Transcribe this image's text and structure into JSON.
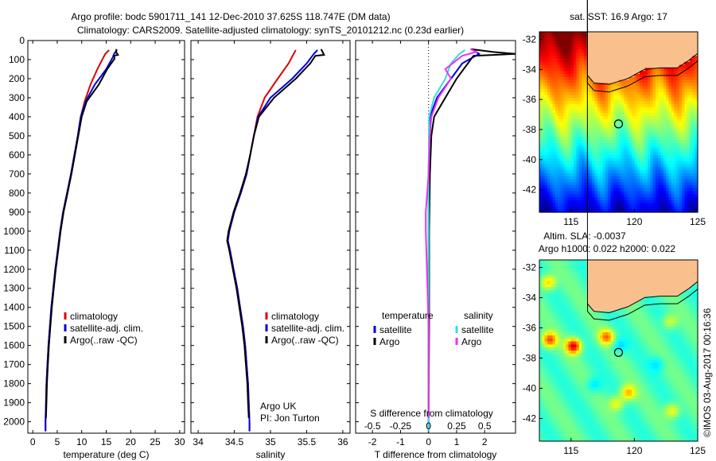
{
  "title_line1": "Argo profile: bodc 5901711_141 12-Dec-2010 37.625S 118.747E (DM data)",
  "title_line2": "Climatology: CARS2009. Satellite-adjusted climatology: synTS_20101212.nc (0.23d earlier)",
  "side_caption": "©IMOS 03-Aug-2017 00:16:36",
  "colors": {
    "climatology": "#e00000",
    "satellite": "#0000dd",
    "argo": "#000000",
    "salinity_satellite": "#33dddd",
    "salinity_argo": "#ee33ee",
    "land": "#f9c08e"
  },
  "chart_data": [
    {
      "type": "line",
      "id": "temperature",
      "xlabel": "temperature (deg C)",
      "ylabel": "",
      "xlim": [
        -1,
        31
      ],
      "ylim": [
        0,
        2060
      ],
      "y_reversed": true,
      "xticks": [
        0,
        5,
        10,
        15,
        20,
        25,
        30
      ],
      "yticks": [
        0,
        100,
        200,
        300,
        400,
        500,
        600,
        700,
        800,
        900,
        1000,
        1100,
        1200,
        1300,
        1400,
        1500,
        1600,
        1700,
        1800,
        1900,
        2000
      ],
      "legend": [
        "climatology",
        "satellite-adj. clim.",
        "Argo(..raw -QC)"
      ],
      "series": [
        {
          "name": "climatology",
          "color_key": "climatology",
          "points": [
            [
              15.6,
              50
            ],
            [
              14.8,
              70
            ],
            [
              14.4,
              90
            ],
            [
              13.2,
              150
            ],
            [
              11.8,
              230
            ],
            [
              10.6,
              320
            ],
            [
              9.8,
              400
            ],
            [
              9.2,
              500
            ],
            [
              8.5,
              600
            ],
            [
              7.8,
              700
            ],
            [
              7.0,
              800
            ],
            [
              6.2,
              900
            ],
            [
              5.6,
              1000
            ],
            [
              5.1,
              1100
            ],
            [
              4.6,
              1200
            ],
            [
              4.2,
              1300
            ],
            [
              3.8,
              1400
            ],
            [
              3.5,
              1500
            ],
            [
              3.2,
              1600
            ],
            [
              3.0,
              1700
            ],
            [
              2.8,
              1800
            ],
            [
              2.7,
              1900
            ],
            [
              2.6,
              2000
            ],
            [
              2.6,
              2050
            ]
          ]
        },
        {
          "name": "satellite-adj. clim.",
          "color_key": "satellite",
          "points": [
            [
              17.2,
              50
            ],
            [
              16.6,
              70
            ],
            [
              16.3,
              90
            ],
            [
              15.0,
              150
            ],
            [
              12.7,
              230
            ],
            [
              10.8,
              320
            ],
            [
              9.8,
              400
            ],
            [
              9.2,
              500
            ],
            [
              8.5,
              600
            ],
            [
              7.8,
              700
            ],
            [
              7.0,
              800
            ],
            [
              6.2,
              900
            ],
            [
              5.6,
              1000
            ],
            [
              5.1,
              1100
            ],
            [
              4.6,
              1200
            ],
            [
              4.2,
              1300
            ],
            [
              3.8,
              1400
            ],
            [
              3.5,
              1500
            ],
            [
              3.2,
              1600
            ],
            [
              3.0,
              1700
            ],
            [
              2.8,
              1800
            ],
            [
              2.7,
              1900
            ],
            [
              2.6,
              2000
            ],
            [
              2.6,
              2050
            ]
          ]
        },
        {
          "name": "Argo(..raw -QC)",
          "color_key": "argo",
          "points": [
            [
              17.1,
              45
            ],
            [
              17.0,
              60
            ],
            [
              17.4,
              75
            ],
            [
              16.6,
              80
            ],
            [
              16.7,
              95
            ],
            [
              15.2,
              150
            ],
            [
              13.5,
              230
            ],
            [
              11.0,
              320
            ],
            [
              10.0,
              400
            ],
            [
              9.3,
              500
            ],
            [
              8.6,
              600
            ],
            [
              7.9,
              700
            ],
            [
              7.1,
              800
            ],
            [
              6.3,
              900
            ],
            [
              5.7,
              1000
            ],
            [
              5.2,
              1100
            ],
            [
              4.7,
              1200
            ],
            [
              4.3,
              1300
            ],
            [
              3.9,
              1400
            ],
            [
              3.6,
              1500
            ],
            [
              3.3,
              1600
            ],
            [
              3.1,
              1700
            ],
            [
              2.9,
              1800
            ],
            [
              2.8,
              1900
            ],
            [
              2.7,
              1980
            ]
          ]
        }
      ]
    },
    {
      "type": "line",
      "id": "salinity",
      "xlabel": "salinity",
      "xlim": [
        33.9,
        36.1
      ],
      "ylim": [
        0,
        2060
      ],
      "y_reversed": true,
      "xticks": [
        34,
        34.5,
        35,
        35.5,
        36
      ],
      "legend": [
        "climatology",
        "satellite-adj. clim.",
        "Argo(..raw -QC)"
      ],
      "annotation": [
        "Argo UK",
        "PI: Jon Turton"
      ],
      "series": [
        {
          "name": "climatology",
          "color_key": "climatology",
          "points": [
            [
              35.35,
              50
            ],
            [
              35.32,
              70
            ],
            [
              35.25,
              120
            ],
            [
              35.1,
              200
            ],
            [
              34.92,
              300
            ],
            [
              34.82,
              400
            ],
            [
              34.77,
              500
            ],
            [
              34.72,
              600
            ],
            [
              34.67,
              700
            ],
            [
              34.59,
              800
            ],
            [
              34.5,
              900
            ],
            [
              34.43,
              1000
            ],
            [
              34.41,
              1050
            ],
            [
              34.44,
              1100
            ],
            [
              34.49,
              1200
            ],
            [
              34.54,
              1300
            ],
            [
              34.58,
              1400
            ],
            [
              34.62,
              1500
            ],
            [
              34.65,
              1600
            ],
            [
              34.67,
              1700
            ],
            [
              34.69,
              1800
            ],
            [
              34.7,
              1900
            ],
            [
              34.71,
              2000
            ],
            [
              34.71,
              2050
            ]
          ]
        },
        {
          "name": "satellite-adj. clim.",
          "color_key": "satellite",
          "points": [
            [
              35.65,
              50
            ],
            [
              35.6,
              70
            ],
            [
              35.5,
              120
            ],
            [
              35.3,
              200
            ],
            [
              35.0,
              300
            ],
            [
              34.83,
              400
            ],
            [
              34.77,
              500
            ],
            [
              34.72,
              600
            ],
            [
              34.67,
              700
            ],
            [
              34.59,
              800
            ],
            [
              34.5,
              900
            ],
            [
              34.43,
              1000
            ],
            [
              34.41,
              1050
            ],
            [
              34.44,
              1100
            ],
            [
              34.49,
              1200
            ],
            [
              34.54,
              1300
            ],
            [
              34.58,
              1400
            ],
            [
              34.62,
              1500
            ],
            [
              34.65,
              1600
            ],
            [
              34.67,
              1700
            ],
            [
              34.69,
              1800
            ],
            [
              34.7,
              1900
            ],
            [
              34.71,
              2000
            ],
            [
              34.71,
              2050
            ]
          ]
        },
        {
          "name": "Argo(..raw -QC)",
          "color_key": "argo",
          "points": [
            [
              35.7,
              45
            ],
            [
              35.72,
              60
            ],
            [
              35.74,
              75
            ],
            [
              35.62,
              80
            ],
            [
              35.55,
              120
            ],
            [
              35.35,
              200
            ],
            [
              35.05,
              300
            ],
            [
              34.84,
              400
            ],
            [
              34.77,
              500
            ],
            [
              34.72,
              600
            ],
            [
              34.66,
              700
            ],
            [
              34.58,
              800
            ],
            [
              34.49,
              900
            ],
            [
              34.42,
              1000
            ],
            [
              34.4,
              1050
            ],
            [
              34.43,
              1100
            ],
            [
              34.48,
              1200
            ],
            [
              34.53,
              1300
            ],
            [
              34.57,
              1400
            ],
            [
              34.61,
              1500
            ],
            [
              34.64,
              1600
            ],
            [
              34.66,
              1700
            ],
            [
              34.68,
              1800
            ],
            [
              34.69,
              1900
            ],
            [
              34.7,
              1980
            ]
          ]
        }
      ]
    },
    {
      "type": "line",
      "id": "differences",
      "xlabel": "T difference from climatology",
      "xlabel_top": "S difference from climatology",
      "xlim": [
        -2.6,
        3.1
      ],
      "ylim": [
        0,
        2060
      ],
      "y_reversed": true,
      "xticks": [
        -2,
        -1,
        0,
        1,
        2
      ],
      "xticks_top": [
        "-0.5",
        "-0.25",
        "0",
        "0.25",
        "0.5"
      ],
      "xticks_top_positions_T": [
        -2,
        -1,
        0,
        1,
        2
      ],
      "legend_temperature_title": "temperature",
      "legend_salinity_title": "salinity",
      "legend": [
        "satellite",
        "Argo",
        "satellite",
        "Argo"
      ],
      "series": [
        {
          "name": "satellite",
          "color_key": "satellite",
          "points": [
            [
              1.6,
              50
            ],
            [
              1.8,
              70
            ],
            [
              1.2,
              120
            ],
            [
              0.8,
              200
            ],
            [
              0.3,
              300
            ],
            [
              0.05,
              400
            ],
            [
              0.02,
              500
            ],
            [
              0,
              700
            ],
            [
              0,
              1000
            ],
            [
              0,
              1500
            ],
            [
              0,
              2000
            ],
            [
              0,
              2050
            ]
          ]
        },
        {
          "name": "Argo",
          "color_key": "argo",
          "points": [
            [
              1.5,
              45
            ],
            [
              2.3,
              60
            ],
            [
              3.1,
              70
            ],
            [
              1.6,
              80
            ],
            [
              1.4,
              120
            ],
            [
              1.0,
              200
            ],
            [
              0.6,
              300
            ],
            [
              0.2,
              400
            ],
            [
              0.1,
              500
            ],
            [
              0.05,
              700
            ],
            [
              0.02,
              1000
            ],
            [
              0.02,
              1500
            ],
            [
              0,
              1980
            ]
          ]
        },
        {
          "name": "satellite",
          "color_key": "salinity_satellite",
          "points": [
            [
              1.3,
              50
            ],
            [
              1.1,
              70
            ],
            [
              0.8,
              120
            ],
            [
              0.6,
              200
            ],
            [
              0.2,
              300
            ],
            [
              0.02,
              400
            ],
            [
              0,
              700
            ],
            [
              0,
              1000
            ],
            [
              0,
              1500
            ],
            [
              0,
              2000
            ],
            [
              0,
              2050
            ]
          ]
        },
        {
          "name": "Argo",
          "color_key": "salinity_argo",
          "points": [
            [
              1.5,
              45
            ],
            [
              1.7,
              60
            ],
            [
              1.2,
              80
            ],
            [
              0.6,
              150
            ],
            [
              0.8,
              200
            ],
            [
              0.35,
              300
            ],
            [
              0.1,
              400
            ],
            [
              0.05,
              500
            ],
            [
              0,
              700
            ],
            [
              -0.1,
              900
            ],
            [
              -0.1,
              1000
            ],
            [
              0,
              1500
            ],
            [
              0,
              1980
            ]
          ]
        }
      ]
    },
    {
      "type": "heatmap",
      "id": "sst_map",
      "title": "sat. SST: 16.9  Argo: 17",
      "xlim": [
        112.5,
        125
      ],
      "ylim": [
        -43.5,
        -31.5
      ],
      "xticks": [
        115,
        120,
        125
      ],
      "yticks": [
        -32,
        -34,
        -36,
        -38,
        -40,
        -42
      ],
      "profile_location": {
        "lon": 118.747,
        "lat": -37.625
      },
      "colormap": "jet"
    },
    {
      "type": "heatmap",
      "id": "sla_map",
      "title_line1": "Altim. SLA: -0.0037",
      "title_line2": "Argo h1000: 0.022 h2000: 0.022",
      "xlim": [
        112.5,
        125
      ],
      "ylim": [
        -43.5,
        -31.5
      ],
      "xticks": [
        115,
        120,
        125
      ],
      "yticks": [
        -32,
        -34,
        -36,
        -38,
        -40,
        -42
      ],
      "profile_location": {
        "lon": 118.747,
        "lat": -37.625
      },
      "colormap": "jet"
    }
  ]
}
